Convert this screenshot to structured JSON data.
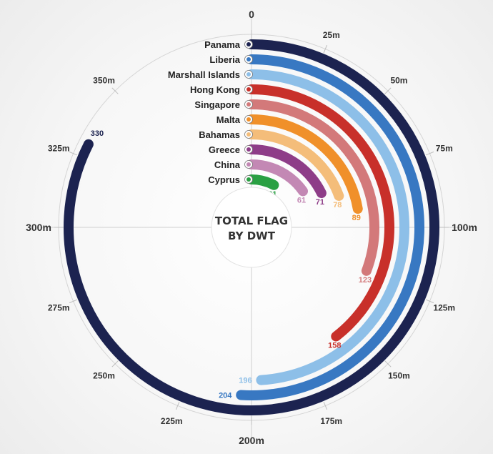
{
  "chart_data": {
    "type": "radial-bar",
    "title_lines": [
      "TOTAL FLAG",
      "BY DWT"
    ],
    "axis_max": 400,
    "axis_ticks": [
      {
        "value": 0,
        "label": "0"
      },
      {
        "value": 25,
        "label": "25m"
      },
      {
        "value": 50,
        "label": "50m"
      },
      {
        "value": 75,
        "label": "75m"
      },
      {
        "value": 100,
        "label": "100m"
      },
      {
        "value": 125,
        "label": "125m"
      },
      {
        "value": 150,
        "label": "150m"
      },
      {
        "value": 175,
        "label": "175m"
      },
      {
        "value": 200,
        "label": "200m"
      },
      {
        "value": 225,
        "label": "225m"
      },
      {
        "value": 250,
        "label": "250m"
      },
      {
        "value": 275,
        "label": "275m"
      },
      {
        "value": 300,
        "label": "300m"
      },
      {
        "value": 325,
        "label": "325m"
      },
      {
        "value": 350,
        "label": "350m"
      }
    ],
    "categories": [
      "Panama",
      "Liberia",
      "Marshall Islands",
      "Hong Kong",
      "Singapore",
      "Malta",
      "Bahamas",
      "Greece",
      "China",
      "Cyprus"
    ],
    "values": [
      330,
      204,
      196,
      158,
      123,
      89,
      78,
      71,
      61,
      31
    ],
    "colors": [
      "#1c2350",
      "#3878c2",
      "#8dbfe8",
      "#c8302a",
      "#d3797a",
      "#f0902a",
      "#f4bd7a",
      "#8e3d88",
      "#c388b4",
      "#2aa043"
    ],
    "flag_icons": [
      "panama-flag-icon",
      "liberia-flag-icon",
      "marshall-islands-flag-icon",
      "hong-kong-flag-icon",
      "singapore-flag-icon",
      "malta-flag-icon",
      "bahamas-flag-icon",
      "greece-flag-icon",
      "china-flag-icon",
      "cyprus-flag-icon"
    ],
    "grid": true
  }
}
